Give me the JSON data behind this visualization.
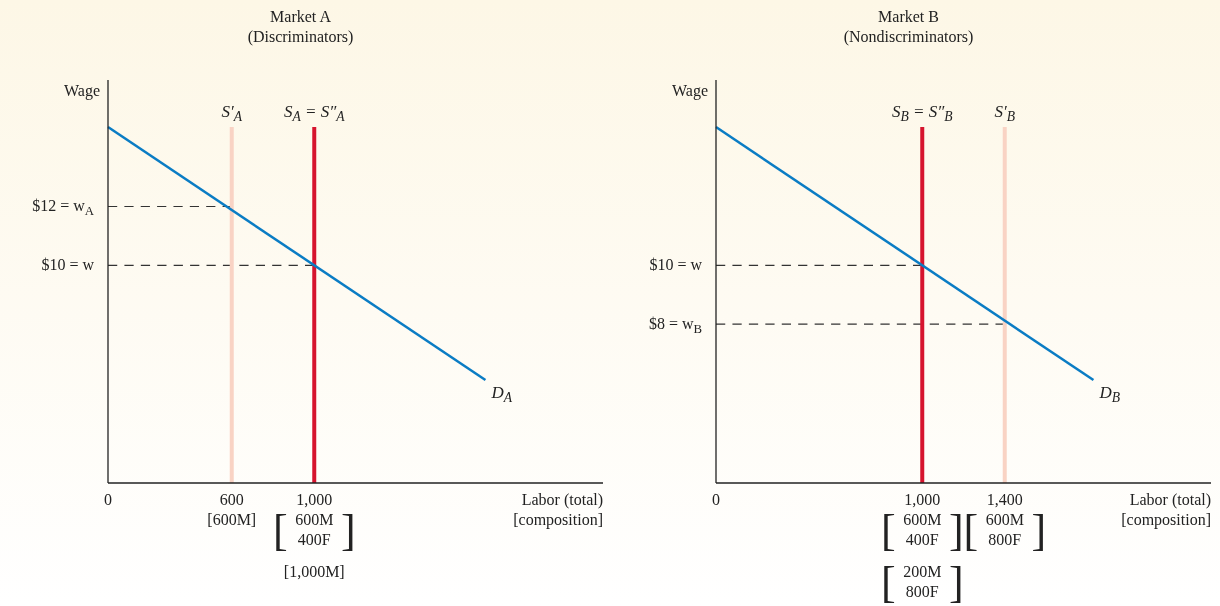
{
  "chart_data": [
    {
      "type": "line",
      "title": "Market A\n(Discriminators)",
      "xlabel": "Labor (total)\n[composition]",
      "ylabel": "Wage",
      "xlim": [
        0,
        2400
      ],
      "ylim": [
        2.6,
        16.3
      ],
      "xticks": [
        {
          "value": 0,
          "label": "0"
        },
        {
          "value": 600,
          "label": "600"
        },
        {
          "value": 1000,
          "label": "1,000"
        }
      ],
      "annotations": [
        "[600M]",
        "[600M\n400F]",
        "[1,000M]"
      ],
      "yticks": [
        {
          "value": 12,
          "label": "$12 = w$_{A}$"
        },
        {
          "value": 10,
          "label": "$10 = w"
        }
      ],
      "series": [
        {
          "color": "#333333",
          "line_style": "dashed",
          "x": [
            0,
            600
          ],
          "values": [
            12,
            12
          ]
        },
        {
          "color": "#333333",
          "line_style": "dashed",
          "x": [
            0,
            1000
          ],
          "values": [
            10,
            10
          ]
        },
        {
          "name": "S′$_{A}$",
          "color": "#f9d3c4",
          "x": [
            600,
            600
          ],
          "values": [
            2.6,
            14.7
          ]
        },
        {
          "name": "S$_{A}$ = S″$_{A}$",
          "color": "#d6142e",
          "x": [
            1000,
            1000
          ],
          "values": [
            2.6,
            14.7
          ]
        },
        {
          "name": "D$_{A}$",
          "color": "#0a7cc4",
          "x": [
            0,
            1830
          ],
          "values": [
            14.7,
            6.1
          ]
        }
      ]
    },
    {
      "type": "line",
      "title": "Market B\n(Nondiscriminators)",
      "xlabel": "Labor (total)\n[composition]",
      "ylabel": "Wage",
      "xlim": [
        0,
        2400
      ],
      "ylim": [
        2.6,
        16.3
      ],
      "xticks": [
        {
          "value": 0,
          "label": "0"
        },
        {
          "value": 1000,
          "label": "1,000"
        },
        {
          "value": 1400,
          "label": "1,400"
        }
      ],
      "annotations": [
        "[600M\n400F]",
        "[200M\n800F]",
        "[600M\n800F]"
      ],
      "yticks": [
        {
          "value": 10,
          "label": "$10 = w"
        },
        {
          "value": 8,
          "label": "$8 = w$_{B}$"
        }
      ],
      "series": [
        {
          "color": "#333333",
          "line_style": "dashed",
          "x": [
            0,
            1000
          ],
          "values": [
            10,
            10
          ]
        },
        {
          "color": "#333333",
          "line_style": "dashed",
          "x": [
            0,
            1400
          ],
          "values": [
            8,
            8
          ]
        },
        {
          "name": "S$_{B}$ = S″$_{B}$",
          "color": "#d6142e",
          "x": [
            1000,
            1000
          ],
          "values": [
            2.6,
            14.7
          ]
        },
        {
          "name": "S′$_{B}$",
          "color": "#f9d3c4",
          "x": [
            1400,
            1400
          ],
          "values": [
            2.6,
            14.7
          ]
        },
        {
          "name": "D$_{B}$",
          "color": "#0a7cc4",
          "x": [
            0,
            1830
          ],
          "values": [
            14.7,
            6.1
          ]
        }
      ]
    }
  ]
}
